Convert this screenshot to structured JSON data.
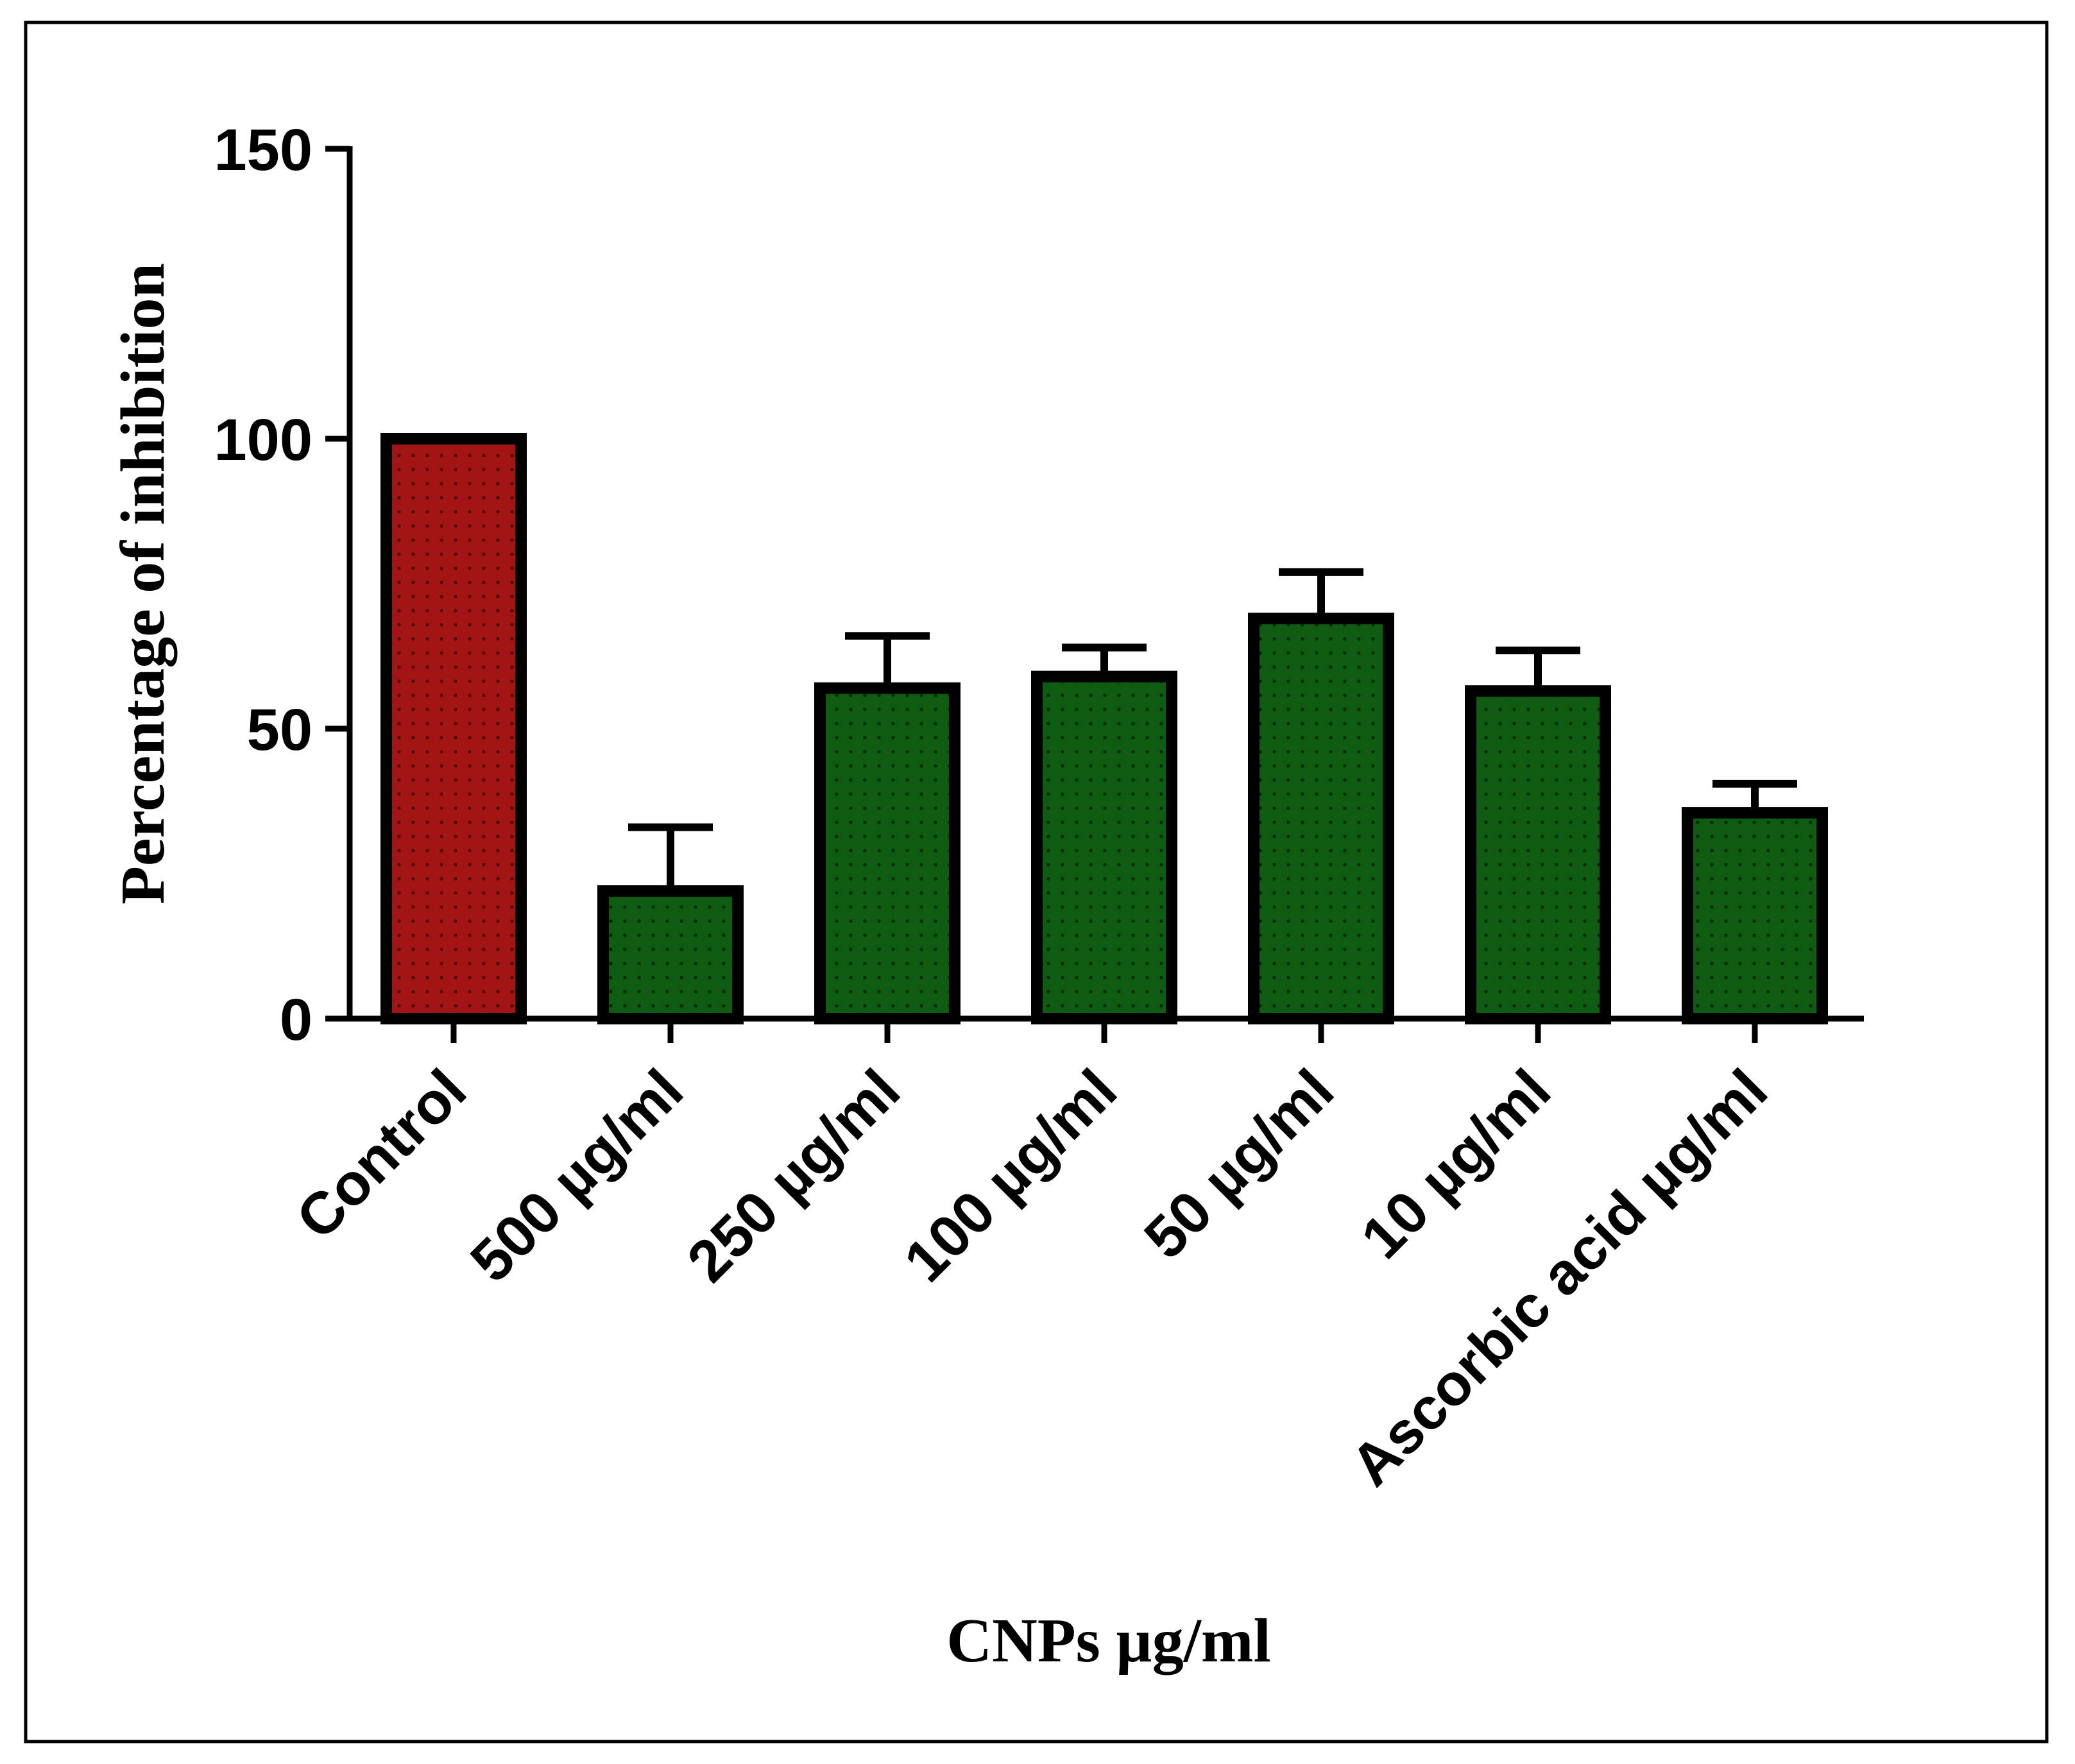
{
  "chart_data": {
    "type": "bar",
    "title": "",
    "xlabel": "CNPs µg/ml",
    "ylabel": "Percentage of inhibition",
    "ylim": [
      0,
      150
    ],
    "yticks": [
      0,
      50,
      100,
      150
    ],
    "categories": [
      "Control",
      "500 µg/ml",
      "250 µg/ml",
      "100 µg/ml",
      "50 µg/ml",
      "10 µg/ml",
      "Ascorbic acid µg/ml"
    ],
    "values": [
      100,
      22,
      57,
      59,
      69,
      56.5,
      35.5
    ],
    "error": [
      0,
      11,
      9,
      5,
      8,
      7,
      5
    ],
    "bar_colors": [
      "#a31515",
      "#0d5c12",
      "#0d5c12",
      "#0d5c12",
      "#0d5c12",
      "#0d5c12",
      "#0d5c12"
    ],
    "grid": false,
    "legend": "none"
  }
}
